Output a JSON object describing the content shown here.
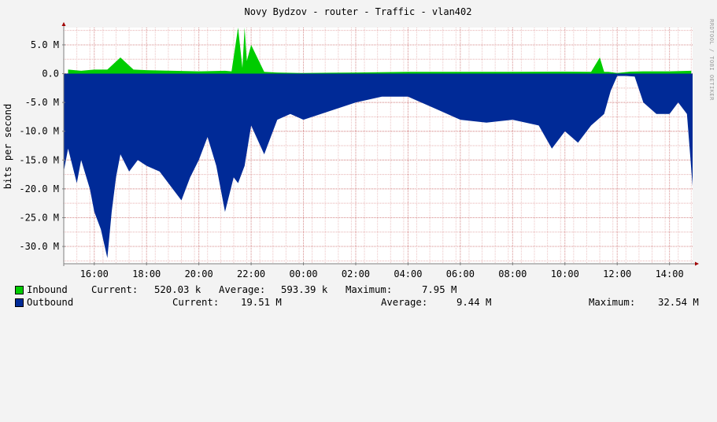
{
  "title": "Novy Bydzov - router - Traffic - vlan402",
  "watermark": "RRDTOOL / TOBI OETIKER",
  "colors": {
    "inbound": "#00cc00",
    "outbound": "#002a97",
    "grid_minor": "#ff0000",
    "plot_bg": "#ffffff",
    "canvas_bg": "#f3f3f3"
  },
  "chart_data": {
    "type": "area",
    "title": "Novy Bydzov - router - Traffic - vlan402",
    "ylabel": "bits per second",
    "y_unit": "M",
    "ylim": [
      -33.0,
      8.0
    ],
    "yticks": [
      5,
      0,
      -5,
      -10,
      -15,
      -20,
      -25,
      -30
    ],
    "ytick_labels": [
      "5.0 M",
      "0.0",
      "-5.0 M",
      "-10.0 M",
      "-15.0 M",
      "-20.0 M",
      "-25.0 M",
      "-30.0 M"
    ],
    "xlim": [
      "14:50",
      "14:53"
    ],
    "xticks": [
      "16:00",
      "18:00",
      "20:00",
      "22:00",
      "00:00",
      "02:00",
      "04:00",
      "06:00",
      "08:00",
      "10:00",
      "12:00",
      "14:00"
    ],
    "grid": true,
    "series": [
      {
        "name": "Inbound",
        "color": "#00cc00",
        "x": [
          "15:00",
          "15:30",
          "16:00",
          "16:30",
          "17:00",
          "17:30",
          "18:00",
          "19:00",
          "20:00",
          "21:00",
          "21:15",
          "21:30",
          "21:40",
          "21:45",
          "21:50",
          "22:00",
          "22:30",
          "23:00",
          "00:00",
          "01:00",
          "02:00",
          "04:00",
          "06:00",
          "08:00",
          "10:00",
          "11:00",
          "11:20",
          "11:30",
          "11:40",
          "12:00",
          "12:30",
          "13:00",
          "14:00",
          "14:50"
        ],
        "values": [
          0.7,
          0.5,
          0.7,
          0.7,
          2.8,
          0.7,
          0.6,
          0.5,
          0.4,
          0.5,
          0.4,
          8.0,
          1.0,
          8.0,
          2.2,
          5.0,
          0.3,
          0.2,
          0.1,
          0.15,
          0.2,
          0.3,
          0.3,
          0.3,
          0.35,
          0.3,
          2.8,
          0.3,
          0.3,
          0.1,
          0.35,
          0.4,
          0.4,
          0.5
        ]
      },
      {
        "name": "Outbound",
        "color": "#002a97",
        "x": [
          "14:50",
          "15:00",
          "15:20",
          "15:30",
          "15:50",
          "16:00",
          "16:15",
          "16:30",
          "16:40",
          "16:50",
          "17:00",
          "17:20",
          "17:40",
          "18:00",
          "18:30",
          "19:00",
          "19:20",
          "19:40",
          "20:00",
          "20:20",
          "20:40",
          "21:00",
          "21:20",
          "21:30",
          "21:45",
          "22:00",
          "22:30",
          "23:00",
          "23:30",
          "00:00",
          "01:00",
          "02:00",
          "03:00",
          "04:00",
          "05:00",
          "06:00",
          "07:00",
          "08:00",
          "09:00",
          "09:30",
          "10:00",
          "10:30",
          "11:00",
          "11:30",
          "11:45",
          "12:00",
          "12:20",
          "12:40",
          "13:00",
          "13:30",
          "14:00",
          "14:20",
          "14:40",
          "14:53"
        ],
        "values": [
          -17,
          -13,
          -19,
          -15,
          -20,
          -24,
          -27,
          -32,
          -24,
          -18,
          -14,
          -17,
          -15,
          -16,
          -17,
          -20,
          -22,
          -18,
          -15,
          -11,
          -16,
          -24,
          -18,
          -19,
          -16,
          -9,
          -14,
          -8,
          -7,
          -8,
          -6.5,
          -5,
          -4,
          -4,
          -6,
          -8,
          -8.5,
          -8,
          -9,
          -13,
          -10,
          -12,
          -9,
          -7,
          -3,
          -0.4,
          -0.4,
          -0.5,
          -5,
          -7,
          -7,
          -5,
          -7,
          -19.51
        ]
      }
    ]
  },
  "legend": {
    "inbound": {
      "name": "Inbound",
      "current_label": "Current:",
      "current": "520.03 k",
      "average_label": "Average:",
      "average": "593.39 k",
      "maximum_label": "Maximum:",
      "maximum": "7.95 M"
    },
    "outbound": {
      "name": "Outbound",
      "current_label": "Current:",
      "current": "19.51 M",
      "average_label": "Average:",
      "average": "9.44 M",
      "maximum_label": "Maximum:",
      "maximum": "32.54 M"
    }
  }
}
